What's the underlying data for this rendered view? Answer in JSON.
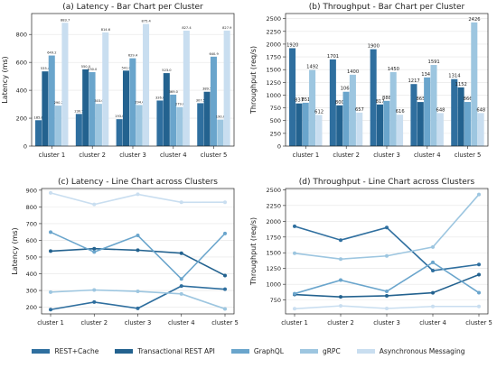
{
  "chart_data": [
    {
      "id": "a",
      "type": "bar",
      "title": "(a) Latency - Bar Chart per Cluster",
      "ylabel": "Latency (ms)",
      "xlabel": "",
      "categories": [
        "cluster 1",
        "cluster 2",
        "cluster 3",
        "cluster 4",
        "cluster 5"
      ],
      "ylim": [
        0,
        950
      ],
      "yticks": [
        0,
        200,
        400,
        600,
        800
      ],
      "label_decimals": 1,
      "series": [
        {
          "name": "REST+Cache",
          "values": [
            185.6,
            230.5,
            193.0,
            326.6,
            307.5
          ]
        },
        {
          "name": "Transactional REST API",
          "values": [
            535.4,
            550.0,
            541.0,
            523.0,
            389.5
          ]
        },
        {
          "name": "GraphQL",
          "values": [
            649.2,
            530.0,
            629.4,
            369.0,
            640.9
          ]
        },
        {
          "name": "gRPC",
          "values": [
            290.2,
            303.0,
            294.6,
            279.6,
            190.0
          ]
        },
        {
          "name": "Asynchronous Messaging",
          "values": [
            883.7,
            814.6,
            875.4,
            827.4,
            827.9
          ]
        }
      ],
      "grid": true,
      "legend": "bottom"
    },
    {
      "id": "b",
      "type": "bar",
      "title": "(b) Throughput - Bar Chart per Cluster",
      "ylabel": "Throughput (req/s)",
      "xlabel": "",
      "categories": [
        "cluster 1",
        "cluster 2",
        "cluster 3",
        "cluster 4",
        "cluster 5"
      ],
      "ylim": [
        0,
        2600
      ],
      "yticks": [
        0,
        250,
        500,
        750,
        1000,
        1250,
        1500,
        1750,
        2000,
        2250,
        2500
      ],
      "label_decimals": 0,
      "series": [
        {
          "name": "REST+Cache",
          "values": [
            1920,
            1701,
            1900,
            1217,
            1314
          ]
        },
        {
          "name": "Transactional REST API",
          "values": [
            837,
            800,
            817,
            865,
            1152
          ]
        },
        {
          "name": "GraphQL",
          "values": [
            851,
            1066,
            888,
            1347,
            866
          ]
        },
        {
          "name": "gRPC",
          "values": [
            1492,
            1400,
            1450,
            1591,
            2426
          ]
        },
        {
          "name": "Asynchronous Messaging",
          "values": [
            612,
            657,
            616,
            648,
            648
          ]
        }
      ],
      "grid": true,
      "legend": "bottom"
    },
    {
      "id": "c",
      "type": "line",
      "title": "(c) Latency - Line Chart across Clusters",
      "ylabel": "Latency (ms)",
      "xlabel": "",
      "categories": [
        "cluster 1",
        "cluster 2",
        "cluster 3",
        "cluster 4",
        "cluster 5"
      ],
      "ylim": [
        160,
        910
      ],
      "yticks": [
        200,
        300,
        400,
        500,
        600,
        700,
        800,
        900
      ],
      "series": [
        {
          "name": "REST+Cache",
          "values": [
            185.6,
            230.5,
            193.0,
            326.6,
            307.5
          ]
        },
        {
          "name": "Transactional REST API",
          "values": [
            535.4,
            550.0,
            541.0,
            523.0,
            389.5
          ]
        },
        {
          "name": "GraphQL",
          "values": [
            649.2,
            530.0,
            629.4,
            369.0,
            640.9
          ]
        },
        {
          "name": "gRPC",
          "values": [
            290.2,
            303.0,
            294.6,
            279.6,
            190.0
          ]
        },
        {
          "name": "Asynchronous Messaging",
          "values": [
            883.7,
            814.6,
            875.4,
            827.4,
            827.9
          ]
        }
      ],
      "grid": true,
      "legend": "bottom"
    },
    {
      "id": "d",
      "type": "line",
      "title": "(d) Throughput - Line Chart across Clusters",
      "ylabel": "Throughput (req/s)",
      "xlabel": "",
      "categories": [
        "cluster 1",
        "cluster 2",
        "cluster 3",
        "cluster 4",
        "cluster 5"
      ],
      "ylim": [
        530,
        2520
      ],
      "yticks": [
        750,
        1000,
        1250,
        1500,
        1750,
        2000,
        2250,
        2500
      ],
      "series": [
        {
          "name": "REST+Cache",
          "values": [
            1920,
            1701,
            1900,
            1217,
            1314
          ]
        },
        {
          "name": "Transactional REST API",
          "values": [
            837,
            800,
            817,
            865,
            1152
          ]
        },
        {
          "name": "GraphQL",
          "values": [
            851,
            1066,
            888,
            1347,
            866
          ]
        },
        {
          "name": "gRPC",
          "values": [
            1492,
            1400,
            1450,
            1591,
            2426
          ]
        },
        {
          "name": "Asynchronous Messaging",
          "values": [
            612,
            657,
            616,
            648,
            648
          ]
        }
      ],
      "grid": true,
      "legend": "bottom"
    }
  ],
  "legend": {
    "items": [
      {
        "name": "REST+Cache",
        "color": "#2f6f9f"
      },
      {
        "name": "Transactional REST API",
        "color": "#23628f"
      },
      {
        "name": "GraphQL",
        "color": "#6aa5cc"
      },
      {
        "name": "gRPC",
        "color": "#9dc6e0"
      },
      {
        "name": "Asynchronous Messaging",
        "color": "#c9def0"
      }
    ]
  },
  "colors": {
    "series": [
      "#2f6f9f",
      "#23628f",
      "#6aa5cc",
      "#9dc6e0",
      "#c9def0"
    ],
    "grid": "#e4e4e4",
    "axis": "#222222"
  }
}
